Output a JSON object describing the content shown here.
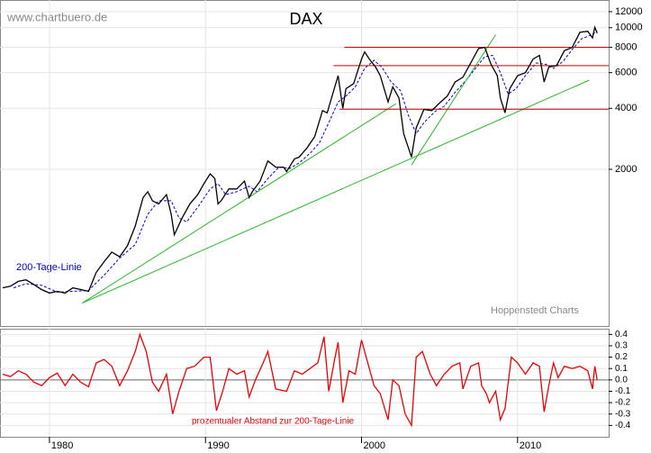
{
  "chart_data": [
    {
      "type": "line",
      "title": "DAX",
      "source": "www.chartbuero.de",
      "credit": "Hoppenstedt Charts",
      "log_scale": true,
      "grid": true,
      "color": "#000000",
      "xlim": [
        1976.83,
        2015.84
      ],
      "xticks": [
        1980,
        1990,
        2000,
        2010
      ],
      "ylim": [
        337,
        13700
      ],
      "yticks": [
        2000,
        4000,
        6000,
        8000,
        10000,
        12000
      ],
      "x": [
        1977.0,
        1977.5,
        1978.0,
        1978.5,
        1979.0,
        1979.5,
        1980.0,
        1980.5,
        1981.0,
        1981.5,
        1982.0,
        1982.5,
        1983.0,
        1983.5,
        1984.0,
        1984.5,
        1985.0,
        1985.5,
        1986.0,
        1986.3,
        1986.6,
        1987.0,
        1987.5,
        1987.8,
        1988.0,
        1988.5,
        1989.0,
        1989.5,
        1989.9,
        1990.3,
        1990.6,
        1990.8,
        1991.0,
        1991.5,
        1992.0,
        1992.5,
        1992.8,
        1993.0,
        1993.5,
        1994.0,
        1994.5,
        1995.0,
        1995.2,
        1995.7,
        1996.0,
        1996.5,
        1997.0,
        1997.5,
        1997.8,
        1998.0,
        1998.5,
        1998.8,
        1999.0,
        1999.5,
        2000.0,
        2000.2,
        2000.5,
        2000.9,
        2001.2,
        2001.7,
        2002.0,
        2002.4,
        2002.7,
        2003.2,
        2003.5,
        2004.0,
        2004.5,
        2005.0,
        2005.5,
        2006.0,
        2006.5,
        2007.0,
        2007.5,
        2007.9,
        2008.3,
        2008.7,
        2008.9,
        2009.2,
        2009.5,
        2010.0,
        2010.5,
        2011.0,
        2011.4,
        2011.7,
        2012.0,
        2012.5,
        2013.0,
        2013.5,
        2014.0,
        2014.5,
        2014.8,
        2014.95,
        2015.1
      ],
      "values": [
        520,
        530,
        560,
        570,
        540,
        510,
        490,
        500,
        490,
        520,
        510,
        500,
        620,
        700,
        780,
        740,
        840,
        1050,
        1450,
        1550,
        1400,
        1350,
        1500,
        1200,
        950,
        1150,
        1350,
        1500,
        1700,
        1900,
        1800,
        1350,
        1400,
        1600,
        1600,
        1750,
        1450,
        1550,
        1750,
        2200,
        2050,
        2050,
        1950,
        2250,
        2300,
        2550,
        2900,
        3900,
        3800,
        4300,
        5800,
        4000,
        5000,
        5300,
        7000,
        7600,
        7000,
        6400,
        5800,
        4300,
        5100,
        4500,
        3000,
        2300,
        3200,
        3950,
        3900,
        4250,
        4600,
        5400,
        5700,
        6700,
        7900,
        8000,
        6600,
        5800,
        4500,
        3800,
        5000,
        5800,
        6000,
        7000,
        7300,
        5400,
        6400,
        6500,
        7700,
        8000,
        9500,
        9600,
        8900,
        10050,
        9400
      ],
      "moving_average": {
        "name": "200-Tage-Linie",
        "color": "#0000cc",
        "x": [
          1977.7,
          1978.5,
          1979.5,
          1980.5,
          1981.5,
          1982.5,
          1983.5,
          1984.5,
          1985.5,
          1986.3,
          1987.0,
          1987.8,
          1988.3,
          1988.8,
          1989.5,
          1990.3,
          1990.8,
          1991.3,
          1992.0,
          1992.8,
          1993.3,
          1994.0,
          1994.7,
          1995.4,
          1996.0,
          1996.7,
          1997.3,
          1997.9,
          1998.5,
          1999.0,
          1999.6,
          2000.2,
          2000.8,
          2001.3,
          2001.9,
          2002.5,
          2003.0,
          2003.5,
          2004.0,
          2004.7,
          2005.3,
          2006.0,
          2006.7,
          2007.3,
          2007.9,
          2008.4,
          2008.9,
          2009.4,
          2009.9,
          2010.5,
          2011.2,
          2011.8,
          2012.3,
          2012.9,
          2013.5,
          2014.1,
          2014.7,
          2015.1
        ],
        "values": [
          520,
          545,
          535,
          495,
          500,
          505,
          600,
          730,
          850,
          1200,
          1400,
          1400,
          1150,
          1100,
          1300,
          1600,
          1700,
          1500,
          1550,
          1650,
          1550,
          1800,
          2050,
          2020,
          2150,
          2400,
          2700,
          3400,
          4300,
          4600,
          5100,
          6300,
          6900,
          6400,
          5400,
          4900,
          3700,
          3000,
          3400,
          3850,
          4100,
          4800,
          5500,
          6300,
          7200,
          7300,
          6000,
          4700,
          5000,
          5800,
          6700,
          6600,
          6300,
          6800,
          7800,
          8800,
          9200,
          9600
        ]
      },
      "trend_lines": [
        {
          "color": "#22bb22",
          "x": [
            1982.1,
            2002.2
          ],
          "y": [
            437,
            4210
          ]
        },
        {
          "color": "#22bb22",
          "x": [
            1982.1,
            2014.6
          ],
          "y": [
            437,
            5510
          ]
        },
        {
          "color": "#22bb22",
          "x": [
            2003.2,
            2008.6
          ],
          "y": [
            2100,
            9240
          ]
        }
      ],
      "levels": [
        {
          "color": "#cc0000",
          "x_start": 1998.9,
          "value": 8000
        },
        {
          "color": "#cc0000",
          "x_start": 1998.2,
          "value": 6500
        },
        {
          "color": "#cc0000",
          "x_start": 1998.6,
          "value": 3960
        }
      ]
    },
    {
      "type": "line",
      "title": "prozentualer Abstand zur 200-Tage-Linie",
      "color": "#ee0000",
      "grid": true,
      "xlim": [
        1976.83,
        2015.84
      ],
      "ylim": [
        -0.5,
        0.45
      ],
      "yticks": [
        0.4,
        0.3,
        0.2,
        0.1,
        {
          "value": 0,
          "label": "0.0"
        },
        -0.1,
        -0.2,
        -0.3,
        -0.4
      ],
      "x": [
        1977,
        1977.5,
        1978,
        1978.5,
        1979,
        1979.5,
        1980,
        1980.5,
        1981,
        1981.5,
        1982,
        1982.5,
        1983,
        1983.5,
        1984,
        1984.5,
        1985,
        1985.5,
        1985.8,
        1986.2,
        1986.6,
        1987,
        1987.5,
        1987.9,
        1988.3,
        1988.8,
        1989.3,
        1989.9,
        1990.3,
        1990.7,
        1991.1,
        1991.5,
        1992,
        1992.5,
        1992.8,
        1993.2,
        1993.7,
        1994,
        1994.5,
        1995.2,
        1995.7,
        1996.2,
        1996.7,
        1997.2,
        1997.6,
        1997.9,
        1998.3,
        1998.5,
        1998.8,
        1999.2,
        1999.6,
        2000.0,
        2000.3,
        2000.8,
        2001.2,
        2001.7,
        2002.0,
        2002.4,
        2002.8,
        2003.2,
        2003.5,
        2003.9,
        2004.4,
        2004.8,
        2005.3,
        2005.8,
        2006.3,
        2006.5,
        2007.0,
        2007.5,
        2007.7,
        2008.0,
        2008.2,
        2008.6,
        2008.9,
        2009.2,
        2009.6,
        2010.0,
        2010.5,
        2011.0,
        2011.4,
        2011.7,
        2012.0,
        2012.3,
        2012.6,
        2013.0,
        2013.5,
        2014.0,
        2014.5,
        2014.8,
        2014.95,
        2015.1
      ],
      "values": [
        0.05,
        0.03,
        0.08,
        0.05,
        -0.02,
        -0.05,
        0.02,
        0.06,
        -0.05,
        0.05,
        -0.02,
        -0.06,
        0.15,
        0.18,
        0.12,
        -0.05,
        0.08,
        0.25,
        0.4,
        0.25,
        -0.02,
        -0.1,
        0.05,
        -0.3,
        -0.1,
        0.1,
        0.12,
        0.2,
        0.2,
        -0.27,
        -0.1,
        0.1,
        0.05,
        0.08,
        -0.15,
        0.0,
        0.15,
        0.25,
        -0.08,
        -0.1,
        0.08,
        0.05,
        0.1,
        0.15,
        0.38,
        -0.1,
        0.2,
        0.33,
        -0.2,
        0.08,
        0.05,
        0.35,
        0.2,
        -0.05,
        -0.12,
        -0.35,
        0.0,
        -0.05,
        -0.3,
        -0.4,
        0.2,
        0.25,
        0.05,
        -0.05,
        0.05,
        0.12,
        0.15,
        -0.08,
        0.12,
        0.15,
        -0.05,
        -0.12,
        -0.2,
        -0.1,
        -0.35,
        -0.25,
        0.2,
        0.15,
        0.05,
        0.15,
        0.12,
        -0.28,
        -0.05,
        0.15,
        0.02,
        0.12,
        0.1,
        0.12,
        0.08,
        -0.08,
        0.12,
        0.0
      ]
    }
  ]
}
